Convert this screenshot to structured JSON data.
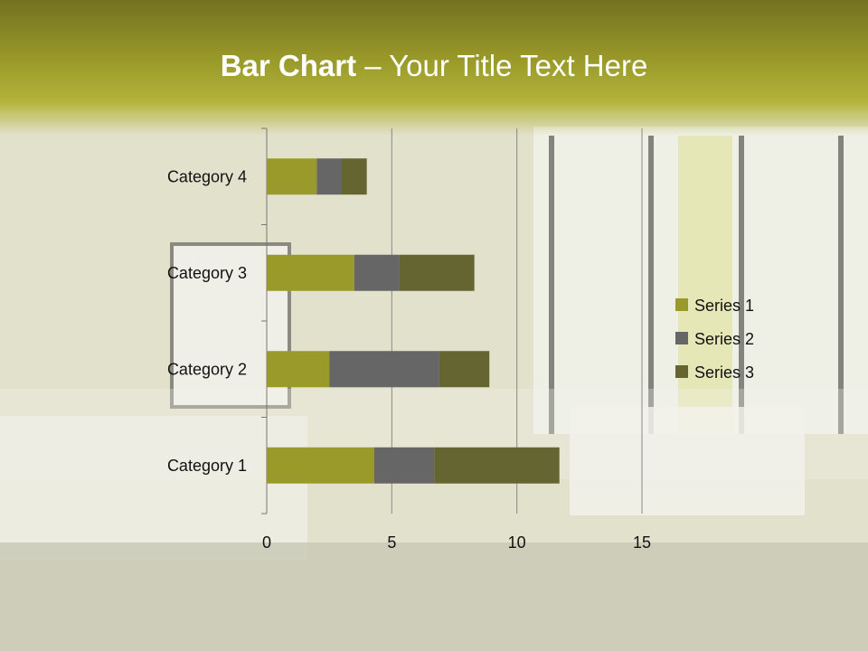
{
  "title": {
    "bold": "Bar Chart",
    "rest": " – Your Title Text Here"
  },
  "chart_data": {
    "type": "bar",
    "orientation": "horizontal",
    "stacked": true,
    "categories": [
      "Category 1",
      "Category 2",
      "Category 3",
      "Category 4"
    ],
    "series": [
      {
        "name": "Series 1",
        "values": [
          4.3,
          2.5,
          3.5,
          2
        ],
        "color": "#9a9a2a"
      },
      {
        "name": "Series 2",
        "values": [
          2.4,
          4.4,
          1.8,
          1
        ],
        "color": "#666666"
      },
      {
        "name": "Series 3",
        "values": [
          5,
          2,
          3,
          1
        ],
        "color": "#656531"
      }
    ],
    "xlim": [
      0,
      15
    ],
    "xticks": [
      0,
      5,
      10,
      15
    ],
    "grid": true,
    "legend": "right"
  }
}
